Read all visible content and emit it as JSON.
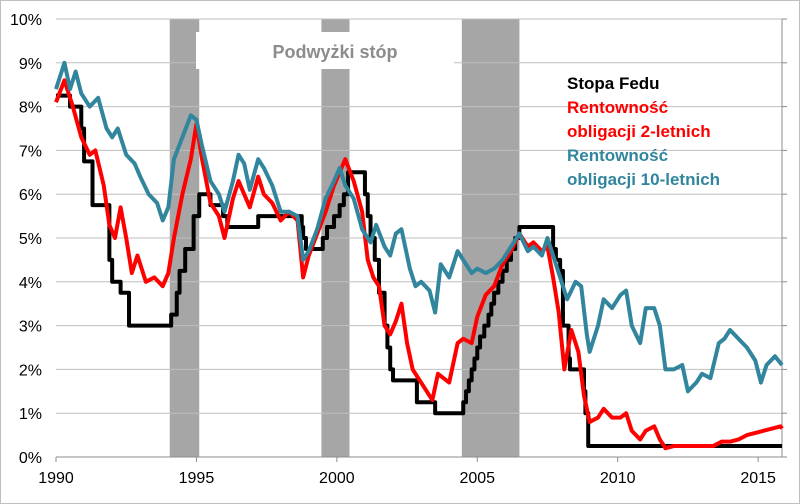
{
  "chart_data": {
    "type": "line",
    "title": "",
    "annotation": "Podwyżki stóp",
    "xlabel": "",
    "ylabel": "",
    "xlim": [
      1990,
      2015.85
    ],
    "ylim": [
      0,
      10
    ],
    "x_ticks": [
      "1990",
      "1995",
      "2000",
      "2005",
      "2010",
      "2015"
    ],
    "x_tick_values": [
      1990,
      1995,
      2000,
      2005,
      2010,
      2015
    ],
    "y_ticks": [
      "0%",
      "1%",
      "2%",
      "3%",
      "4%",
      "5%",
      "6%",
      "7%",
      "8%",
      "9%",
      "10%"
    ],
    "grid": true,
    "legend_position": "top-right",
    "shaded_periods": [
      [
        1994.05,
        1995.1
      ],
      [
        1999.45,
        2000.45
      ],
      [
        2004.45,
        2006.5
      ]
    ],
    "series": [
      {
        "name": "Stopa Fedu",
        "color": "#000000",
        "step": true,
        "points": [
          [
            1990,
            8.25
          ],
          [
            1990.5,
            8.0
          ],
          [
            1990.9,
            7.5
          ],
          [
            1991.0,
            6.75
          ],
          [
            1991.3,
            5.75
          ],
          [
            1991.9,
            4.5
          ],
          [
            1992.0,
            4.0
          ],
          [
            1992.3,
            3.75
          ],
          [
            1992.6,
            3.0
          ],
          [
            1994.1,
            3.25
          ],
          [
            1994.3,
            3.75
          ],
          [
            1994.4,
            4.25
          ],
          [
            1994.6,
            4.75
          ],
          [
            1994.9,
            5.5
          ],
          [
            1995.1,
            6.0
          ],
          [
            1995.5,
            5.75
          ],
          [
            1995.95,
            5.5
          ],
          [
            1996.1,
            5.25
          ],
          [
            1997.2,
            5.5
          ],
          [
            1998.75,
            5.25
          ],
          [
            1998.8,
            5.0
          ],
          [
            1998.9,
            4.75
          ],
          [
            1999.5,
            5.0
          ],
          [
            1999.65,
            5.25
          ],
          [
            1999.9,
            5.5
          ],
          [
            2000.1,
            5.75
          ],
          [
            2000.25,
            6.0
          ],
          [
            2000.4,
            6.5
          ],
          [
            2001.0,
            6.0
          ],
          [
            2001.1,
            5.5
          ],
          [
            2001.2,
            5.0
          ],
          [
            2001.35,
            4.5
          ],
          [
            2001.5,
            3.75
          ],
          [
            2001.7,
            3.0
          ],
          [
            2001.8,
            2.5
          ],
          [
            2001.9,
            2.0
          ],
          [
            2002.0,
            1.75
          ],
          [
            2002.85,
            1.25
          ],
          [
            2003.5,
            1.0
          ],
          [
            2004.5,
            1.25
          ],
          [
            2004.6,
            1.5
          ],
          [
            2004.7,
            1.75
          ],
          [
            2004.8,
            2.0
          ],
          [
            2004.9,
            2.25
          ],
          [
            2005.0,
            2.5
          ],
          [
            2005.1,
            2.75
          ],
          [
            2005.25,
            3.0
          ],
          [
            2005.4,
            3.25
          ],
          [
            2005.5,
            3.5
          ],
          [
            2005.6,
            3.75
          ],
          [
            2005.75,
            4.0
          ],
          [
            2005.9,
            4.25
          ],
          [
            2006.05,
            4.5
          ],
          [
            2006.2,
            4.75
          ],
          [
            2006.35,
            5.0
          ],
          [
            2006.5,
            5.25
          ],
          [
            2007.7,
            4.75
          ],
          [
            2007.8,
            4.5
          ],
          [
            2007.95,
            4.25
          ],
          [
            2008.05,
            3.0
          ],
          [
            2008.25,
            2.25
          ],
          [
            2008.3,
            2.0
          ],
          [
            2008.8,
            1.5
          ],
          [
            2008.85,
            1.0
          ],
          [
            2008.95,
            0.25
          ],
          [
            2015.85,
            0.25
          ]
        ]
      },
      {
        "name": "Rentowność obligacji 2-letnich",
        "color": "#FF0000",
        "step": false,
        "points": [
          [
            1990.0,
            8.1
          ],
          [
            1990.3,
            8.6
          ],
          [
            1990.6,
            8.0
          ],
          [
            1990.9,
            7.3
          ],
          [
            1991.2,
            6.9
          ],
          [
            1991.4,
            7.0
          ],
          [
            1991.7,
            6.2
          ],
          [
            1991.9,
            5.3
          ],
          [
            1992.1,
            5.0
          ],
          [
            1992.3,
            5.7
          ],
          [
            1992.5,
            5.0
          ],
          [
            1992.7,
            4.2
          ],
          [
            1992.9,
            4.6
          ],
          [
            1993.2,
            4.0
          ],
          [
            1993.5,
            4.1
          ],
          [
            1993.8,
            3.9
          ],
          [
            1994.0,
            4.2
          ],
          [
            1994.2,
            5.0
          ],
          [
            1994.5,
            6.0
          ],
          [
            1994.8,
            6.8
          ],
          [
            1995.0,
            7.6
          ],
          [
            1995.2,
            6.8
          ],
          [
            1995.5,
            5.8
          ],
          [
            1995.8,
            5.5
          ],
          [
            1996.0,
            5.0
          ],
          [
            1996.3,
            5.9
          ],
          [
            1996.5,
            6.3
          ],
          [
            1996.7,
            6.0
          ],
          [
            1996.9,
            5.7
          ],
          [
            1997.2,
            6.4
          ],
          [
            1997.4,
            6.0
          ],
          [
            1997.7,
            5.8
          ],
          [
            1998.0,
            5.4
          ],
          [
            1998.3,
            5.6
          ],
          [
            1998.6,
            5.4
          ],
          [
            1998.8,
            4.1
          ],
          [
            1999.0,
            4.6
          ],
          [
            1999.3,
            5.1
          ],
          [
            1999.6,
            5.6
          ],
          [
            1999.9,
            6.2
          ],
          [
            2000.1,
            6.5
          ],
          [
            2000.3,
            6.8
          ],
          [
            2000.6,
            6.3
          ],
          [
            2000.9,
            5.6
          ],
          [
            2001.1,
            4.5
          ],
          [
            2001.3,
            4.1
          ],
          [
            2001.5,
            3.9
          ],
          [
            2001.7,
            3.0
          ],
          [
            2001.9,
            2.8
          ],
          [
            2002.1,
            3.1
          ],
          [
            2002.3,
            3.5
          ],
          [
            2002.5,
            2.6
          ],
          [
            2002.7,
            2.0
          ],
          [
            2002.9,
            1.8
          ],
          [
            2003.1,
            1.6
          ],
          [
            2003.4,
            1.3
          ],
          [
            2003.6,
            1.9
          ],
          [
            2003.8,
            1.8
          ],
          [
            2004.0,
            1.7
          ],
          [
            2004.3,
            2.6
          ],
          [
            2004.5,
            2.7
          ],
          [
            2004.8,
            2.6
          ],
          [
            2005.0,
            3.2
          ],
          [
            2005.3,
            3.7
          ],
          [
            2005.6,
            3.9
          ],
          [
            2005.9,
            4.4
          ],
          [
            2006.2,
            4.7
          ],
          [
            2006.5,
            5.1
          ],
          [
            2006.8,
            4.8
          ],
          [
            2007.0,
            4.9
          ],
          [
            2007.3,
            4.7
          ],
          [
            2007.5,
            4.8
          ],
          [
            2007.7,
            4.1
          ],
          [
            2007.9,
            3.3
          ],
          [
            2008.1,
            2.0
          ],
          [
            2008.35,
            2.9
          ],
          [
            2008.6,
            2.4
          ],
          [
            2008.8,
            1.4
          ],
          [
            2009.0,
            0.8
          ],
          [
            2009.3,
            0.9
          ],
          [
            2009.5,
            1.1
          ],
          [
            2009.8,
            0.9
          ],
          [
            2010.1,
            0.9
          ],
          [
            2010.3,
            1.0
          ],
          [
            2010.5,
            0.6
          ],
          [
            2010.8,
            0.4
          ],
          [
            2011.0,
            0.6
          ],
          [
            2011.3,
            0.7
          ],
          [
            2011.5,
            0.4
          ],
          [
            2011.7,
            0.2
          ],
          [
            2012.0,
            0.25
          ],
          [
            2012.5,
            0.25
          ],
          [
            2013.0,
            0.25
          ],
          [
            2013.4,
            0.25
          ],
          [
            2013.7,
            0.35
          ],
          [
            2014.0,
            0.35
          ],
          [
            2014.3,
            0.4
          ],
          [
            2014.6,
            0.5
          ],
          [
            2014.9,
            0.55
          ],
          [
            2015.2,
            0.6
          ],
          [
            2015.5,
            0.65
          ],
          [
            2015.8,
            0.7
          ],
          [
            2015.85,
            0.65
          ]
        ]
      },
      {
        "name": "Rentowność obligacji 10-letnich",
        "color": "#31859C",
        "step": false,
        "points": [
          [
            1990.0,
            8.4
          ],
          [
            1990.3,
            9.0
          ],
          [
            1990.5,
            8.4
          ],
          [
            1990.7,
            8.8
          ],
          [
            1990.9,
            8.3
          ],
          [
            1991.2,
            8.0
          ],
          [
            1991.5,
            8.2
          ],
          [
            1991.8,
            7.5
          ],
          [
            1992.0,
            7.3
          ],
          [
            1992.2,
            7.5
          ],
          [
            1992.5,
            6.9
          ],
          [
            1992.8,
            6.7
          ],
          [
            1993.0,
            6.4
          ],
          [
            1993.3,
            6.0
          ],
          [
            1993.6,
            5.8
          ],
          [
            1993.8,
            5.4
          ],
          [
            1994.0,
            5.7
          ],
          [
            1994.2,
            6.8
          ],
          [
            1994.5,
            7.3
          ],
          [
            1994.8,
            7.8
          ],
          [
            1995.0,
            7.7
          ],
          [
            1995.2,
            7.1
          ],
          [
            1995.5,
            6.3
          ],
          [
            1995.8,
            6.0
          ],
          [
            1996.0,
            5.6
          ],
          [
            1996.3,
            6.3
          ],
          [
            1996.5,
            6.9
          ],
          [
            1996.7,
            6.7
          ],
          [
            1996.9,
            6.1
          ],
          [
            1997.2,
            6.8
          ],
          [
            1997.4,
            6.6
          ],
          [
            1997.7,
            6.2
          ],
          [
            1998.0,
            5.6
          ],
          [
            1998.3,
            5.6
          ],
          [
            1998.6,
            5.5
          ],
          [
            1998.8,
            4.5
          ],
          [
            1999.0,
            4.7
          ],
          [
            1999.3,
            5.2
          ],
          [
            1999.6,
            5.9
          ],
          [
            1999.9,
            6.3
          ],
          [
            2000.1,
            6.6
          ],
          [
            2000.3,
            6.2
          ],
          [
            2000.6,
            5.9
          ],
          [
            2000.9,
            5.2
          ],
          [
            2001.2,
            4.9
          ],
          [
            2001.4,
            5.3
          ],
          [
            2001.7,
            4.8
          ],
          [
            2001.9,
            4.6
          ],
          [
            2002.1,
            5.1
          ],
          [
            2002.3,
            5.2
          ],
          [
            2002.6,
            4.3
          ],
          [
            2002.8,
            3.9
          ],
          [
            2003.0,
            4.0
          ],
          [
            2003.3,
            3.8
          ],
          [
            2003.5,
            3.3
          ],
          [
            2003.7,
            4.4
          ],
          [
            2004.0,
            4.1
          ],
          [
            2004.3,
            4.7
          ],
          [
            2004.5,
            4.5
          ],
          [
            2004.8,
            4.2
          ],
          [
            2005.0,
            4.3
          ],
          [
            2005.3,
            4.2
          ],
          [
            2005.6,
            4.3
          ],
          [
            2005.9,
            4.5
          ],
          [
            2006.2,
            4.8
          ],
          [
            2006.5,
            5.1
          ],
          [
            2006.8,
            4.7
          ],
          [
            2007.0,
            4.8
          ],
          [
            2007.3,
            4.6
          ],
          [
            2007.5,
            5.0
          ],
          [
            2007.7,
            4.6
          ],
          [
            2007.9,
            4.2
          ],
          [
            2008.2,
            3.6
          ],
          [
            2008.5,
            4.0
          ],
          [
            2008.7,
            3.9
          ],
          [
            2008.9,
            2.8
          ],
          [
            2009.0,
            2.4
          ],
          [
            2009.3,
            3.0
          ],
          [
            2009.5,
            3.6
          ],
          [
            2009.8,
            3.4
          ],
          [
            2010.1,
            3.7
          ],
          [
            2010.3,
            3.8
          ],
          [
            2010.5,
            3.0
          ],
          [
            2010.8,
            2.6
          ],
          [
            2011.0,
            3.4
          ],
          [
            2011.3,
            3.4
          ],
          [
            2011.5,
            3.0
          ],
          [
            2011.7,
            2.0
          ],
          [
            2012.0,
            2.0
          ],
          [
            2012.3,
            2.1
          ],
          [
            2012.5,
            1.5
          ],
          [
            2012.8,
            1.7
          ],
          [
            2013.0,
            1.9
          ],
          [
            2013.3,
            1.8
          ],
          [
            2013.6,
            2.6
          ],
          [
            2013.8,
            2.7
          ],
          [
            2014.0,
            2.9
          ],
          [
            2014.3,
            2.7
          ],
          [
            2014.6,
            2.5
          ],
          [
            2014.9,
            2.2
          ],
          [
            2015.1,
            1.7
          ],
          [
            2015.3,
            2.1
          ],
          [
            2015.6,
            2.3
          ],
          [
            2015.85,
            2.1
          ]
        ]
      }
    ],
    "legend": [
      {
        "lines": [
          "Stopa Fedu"
        ],
        "color": "#000000"
      },
      {
        "lines": [
          "Rentowność",
          "obligacji 2-letnich"
        ],
        "color": "#FF0000"
      },
      {
        "lines": [
          "Rentowność",
          "obligacji 10-letnich"
        ],
        "color": "#31859C"
      }
    ]
  }
}
